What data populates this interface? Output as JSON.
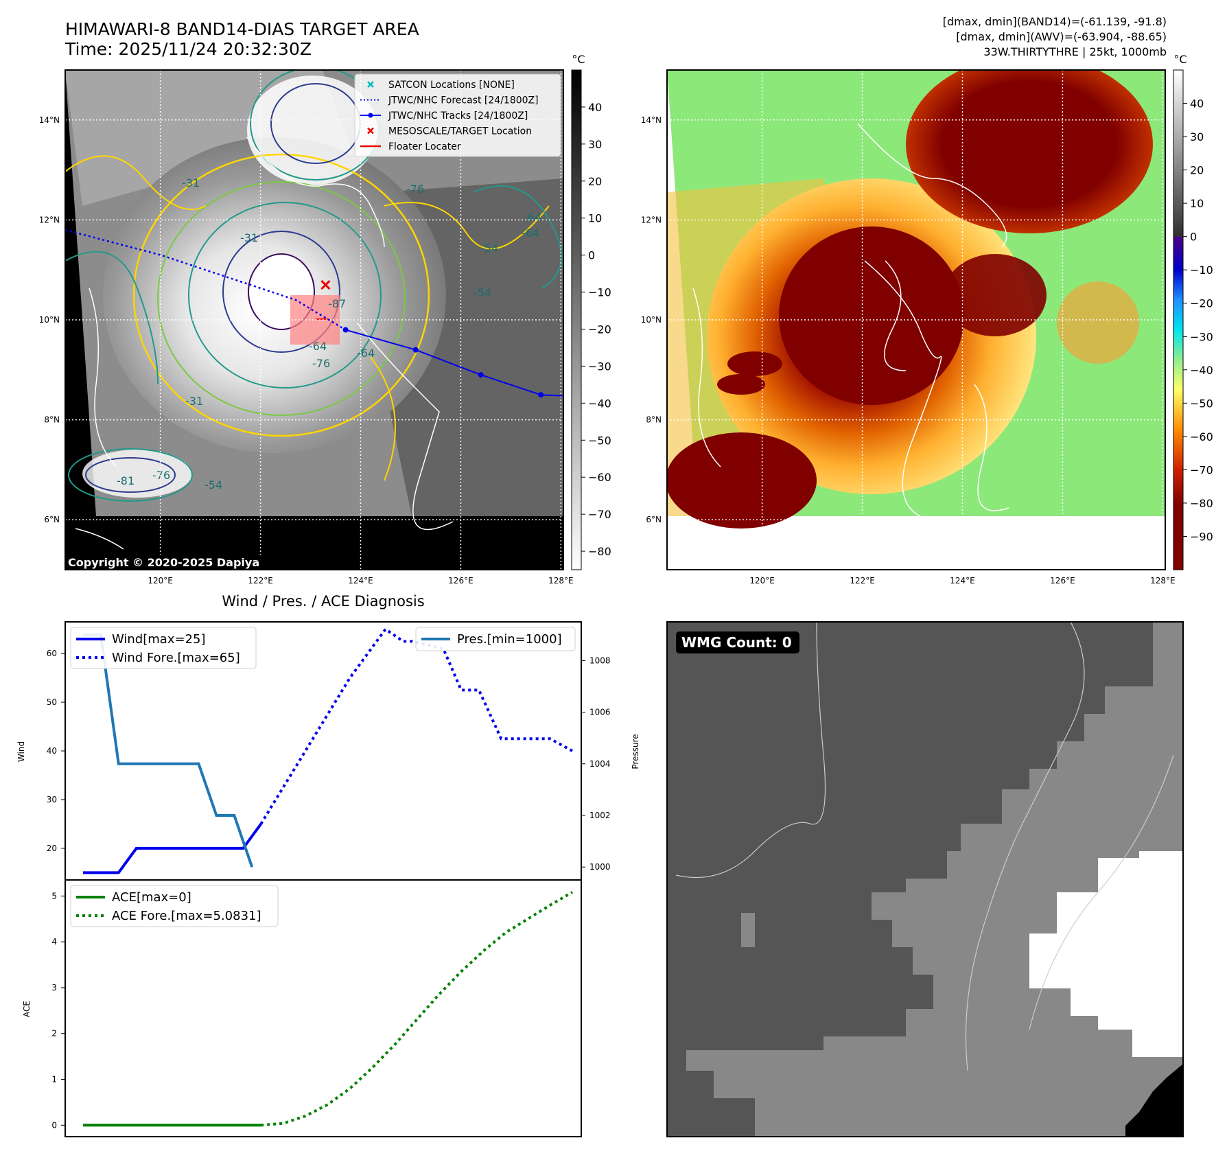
{
  "header": {
    "title": "HIMAWARI-8 BAND14-DIAS TARGET AREA",
    "time": "Time: 2025/11/24 20:32:30Z",
    "info1": "[dmax, dmin](BAND14)=(-61.139, -91.8)",
    "info2": "[dmax, dmin](AWV)=(-63.904, -88.65)",
    "info3": "33W.THIRTYTHRE | 25kt, 1000mb"
  },
  "map": {
    "lat_labels": [
      "14°N",
      "12°N",
      "10°N",
      "8°N",
      "6°N"
    ],
    "lat_values": [
      14,
      12,
      10,
      8,
      6
    ],
    "lon_labels": [
      "120°E",
      "122°E",
      "124°E",
      "126°E",
      "128°E"
    ],
    "lon_values": [
      120,
      122,
      124,
      126,
      128
    ],
    "lat_range": [
      5,
      15
    ],
    "lon_range": [
      118.1,
      128.05
    ],
    "copyright": "Copyright © 2020-2025 Dapiya",
    "contour_labels": [
      "-31",
      "-31",
      "-76",
      "-64",
      "-54",
      "-54",
      "-64",
      "-76",
      "-87",
      "-64",
      "-31",
      "-81",
      "-76",
      "-54",
      "-64"
    ],
    "legend": [
      {
        "label": "SATCON Locations [NONE]",
        "marker": "cyan-x"
      },
      {
        "label": "JTWC/NHC Forecast [24/1800Z]",
        "marker": "blue-dotted"
      },
      {
        "label": "JTWC/NHC Tracks [24/1800Z]",
        "marker": "blue-line-dot"
      },
      {
        "label": "MESOSCALE/TARGET Location",
        "marker": "red-x"
      },
      {
        "label": "Floater Locater",
        "marker": "red-line"
      }
    ],
    "track_points": [
      [
        123.7,
        9.8
      ],
      [
        125.1,
        9.4
      ],
      [
        126.4,
        8.9
      ],
      [
        127.6,
        8.5
      ],
      [
        128.05,
        8.48
      ]
    ],
    "forecast_points": [
      [
        118.1,
        11.8
      ],
      [
        120,
        11.3
      ],
      [
        121.5,
        10.8
      ],
      [
        122.7,
        10.4
      ],
      [
        123.7,
        9.8
      ]
    ],
    "target": [
      123.3,
      10.7
    ],
    "colors": {
      "track": "#0000ee",
      "forecast": "#0000ee",
      "target": "#ee0000",
      "satcon": "#00bfbf"
    }
  },
  "colorbar_gray": {
    "unit": "°C",
    "ticks": [
      "40",
      "30",
      "20",
      "10",
      "0",
      "−10",
      "−20",
      "−30",
      "−40",
      "−50",
      "−60",
      "−70",
      "−80"
    ],
    "tick_values": [
      40,
      30,
      20,
      10,
      0,
      -10,
      -20,
      -30,
      -40,
      -50,
      -60,
      -70,
      -80
    ],
    "range": [
      -85,
      50
    ]
  },
  "colorbar_color": {
    "unit": "°C",
    "ticks": [
      "40",
      "30",
      "20",
      "10",
      "0",
      "−10",
      "−20",
      "−30",
      "−40",
      "−50",
      "−60",
      "−70",
      "−80",
      "−90"
    ],
    "tick_values": [
      40,
      30,
      20,
      10,
      0,
      -10,
      -20,
      -30,
      -40,
      -50,
      -60,
      -70,
      -80,
      -90
    ],
    "range": [
      -100,
      50
    ]
  },
  "chart_data": [
    {
      "type": "line",
      "title": "Wind / Pres. / ACE Diagnosis",
      "ylabel": "Wind",
      "ylabel2": "Pressure",
      "ylim": [
        13.5,
        66.5
      ],
      "y2lim": [
        999.5,
        1009.5
      ],
      "xlim": [
        -0.4,
        11.2
      ],
      "yticks": [
        20,
        30,
        40,
        50,
        60
      ],
      "y2ticks": [
        1000,
        1002,
        1004,
        1006,
        1008
      ],
      "series": [
        {
          "name": "Wind[max=25]",
          "style": "solid",
          "color": "#0000ee",
          "axis": "left",
          "x": [
            0,
            0.8,
            1.2,
            2.6,
            3,
            3.1,
            3.5,
            3.6,
            4
          ],
          "y": [
            15,
            15,
            20,
            20,
            20,
            20,
            20,
            20,
            25
          ]
        },
        {
          "name": "Wind Fore.[max=65]",
          "style": "dotted",
          "color": "#0000ee",
          "axis": "left",
          "x": [
            4,
            5,
            6,
            6.8,
            7.2,
            7.4,
            8.1,
            8.5,
            8.9,
            9.4,
            9.9,
            10.5,
            11
          ],
          "y": [
            25,
            40,
            55,
            65,
            62.5,
            62.5,
            61,
            52.5,
            52.5,
            42.5,
            42.5,
            42.5,
            40
          ]
        },
        {
          "name": "Pres.[min=1000]",
          "style": "solid",
          "color": "#1f77b4",
          "axis": "right",
          "x": [
            0,
            0.4,
            0.8,
            1.2,
            1.8,
            2.6,
            3,
            3.4,
            3.8
          ],
          "y": [
            1009,
            1009,
            1004,
            1004,
            1004,
            1004,
            1002,
            1002,
            1000
          ]
        }
      ]
    },
    {
      "type": "line",
      "ylabel": "ACE",
      "ylim": [
        -0.25,
        5.35
      ],
      "xlim": [
        -0.4,
        11.2
      ],
      "yticks": [
        0,
        1,
        2,
        3,
        4,
        5
      ],
      "series": [
        {
          "name": "ACE[max=0]",
          "style": "solid",
          "color": "#008000",
          "x": [
            0,
            1,
            2,
            3,
            4
          ],
          "y": [
            0,
            0,
            0,
            0,
            0
          ]
        },
        {
          "name": "ACE Fore.[max=5.0831]",
          "style": "dotted",
          "color": "#008000",
          "x": [
            4,
            4.5,
            5,
            5.5,
            6,
            6.5,
            7,
            7.5,
            8,
            8.5,
            9,
            9.5,
            10,
            10.5,
            11
          ],
          "y": [
            0,
            0.04,
            0.2,
            0.45,
            0.8,
            1.25,
            1.75,
            2.3,
            2.85,
            3.35,
            3.8,
            4.2,
            4.5,
            4.8,
            5.0831
          ]
        }
      ]
    }
  ],
  "wmg": {
    "label": "WMG Count: 0"
  }
}
